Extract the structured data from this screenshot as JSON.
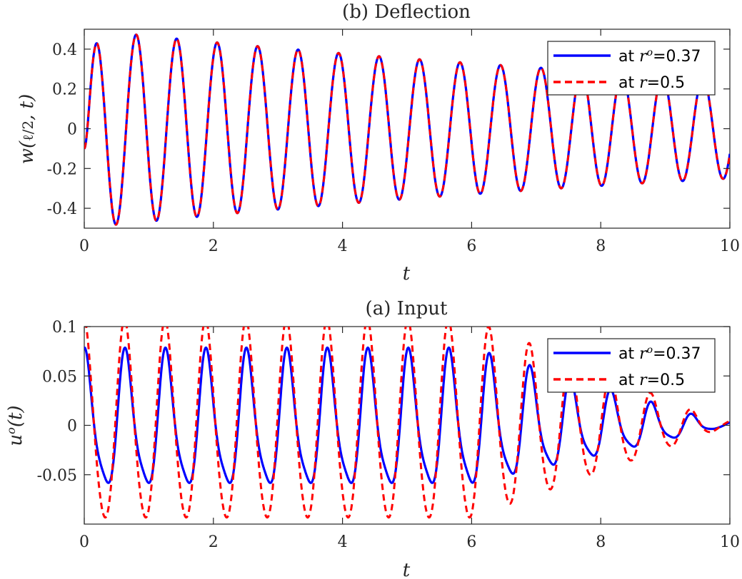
{
  "chart_data": [
    {
      "id": "deflection",
      "type": "line",
      "title": "(b) Deflection",
      "xlabel": "t",
      "ylabel": "w(ℓ/2, t)",
      "xlim": [
        0,
        10
      ],
      "ylim": [
        -0.5,
        0.5
      ],
      "xticks": [
        0,
        2,
        4,
        6,
        8,
        10
      ],
      "xtick_labels": [
        "0",
        "2",
        "4",
        "6",
        "8",
        "10"
      ],
      "yticks": [
        0.4,
        0.2,
        0,
        -0.2,
        -0.4
      ],
      "ytick_labels": [
        "0.4",
        "0.2",
        "0",
        "-0.2",
        "-0.4"
      ],
      "legend_position": "top-right",
      "series": [
        {
          "name": "at r°=0.37",
          "label_prefix": "at ",
          "label_var": "r",
          "label_sup": "o",
          "label_suffix": "=0.37",
          "color": "#0000ff",
          "style": "solid",
          "model": {
            "offset": -0.1,
            "amp0": 0.5,
            "decay": 0.0693,
            "period": 0.627,
            "phase": -0.209
          }
        },
        {
          "name": "at r=0.5",
          "label_prefix": "at ",
          "label_var": "r",
          "label_sup": "",
          "label_suffix": "=0.5",
          "color": "#ff0000",
          "style": "dashed",
          "model": {
            "offset": -0.1,
            "amp0": 0.5,
            "decay": 0.0693,
            "period": 0.627,
            "phase": -0.209
          }
        }
      ]
    },
    {
      "id": "input",
      "type": "line",
      "title": "(a) Input",
      "xlabel": "t",
      "ylabel": "u°(t)",
      "xlim": [
        0,
        10
      ],
      "ylim": [
        -0.1,
        0.1
      ],
      "xticks": [
        0,
        2,
        4,
        6,
        8,
        10
      ],
      "xtick_labels": [
        "0",
        "2",
        "4",
        "6",
        "8",
        "10"
      ],
      "yticks": [
        0.1,
        0.05,
        0,
        -0.05
      ],
      "ytick_labels": [
        "0.1",
        "0.05",
        "0",
        "-0.05"
      ],
      "legend_position": "top-right",
      "series": [
        {
          "name": "at r°=0.37",
          "label_prefix": "at ",
          "label_var": "r",
          "label_sup": "o",
          "label_suffix": "=0.37",
          "color": "#0000ff",
          "style": "solid",
          "model": {
            "amp0": 0.066,
            "decay": 0.0,
            "taper_start": 6.0,
            "taper_end": 10.0,
            "period": 0.627,
            "phase": 1.4,
            "ripple_amp": 0.014,
            "ripple_freq": 2.0
          }
        },
        {
          "name": "at r=0.5",
          "label_prefix": "at ",
          "label_var": "r",
          "label_sup": "",
          "label_suffix": "=0.5",
          "color": "#ff0000",
          "style": "dashed",
          "model": {
            "amp0": 0.1,
            "decay": 0.0,
            "taper_start": 6.0,
            "taper_end": 10.0,
            "period": 0.627,
            "phase": 1.55,
            "ripple_amp": 0.008,
            "ripple_freq": 2.0
          }
        }
      ]
    }
  ]
}
